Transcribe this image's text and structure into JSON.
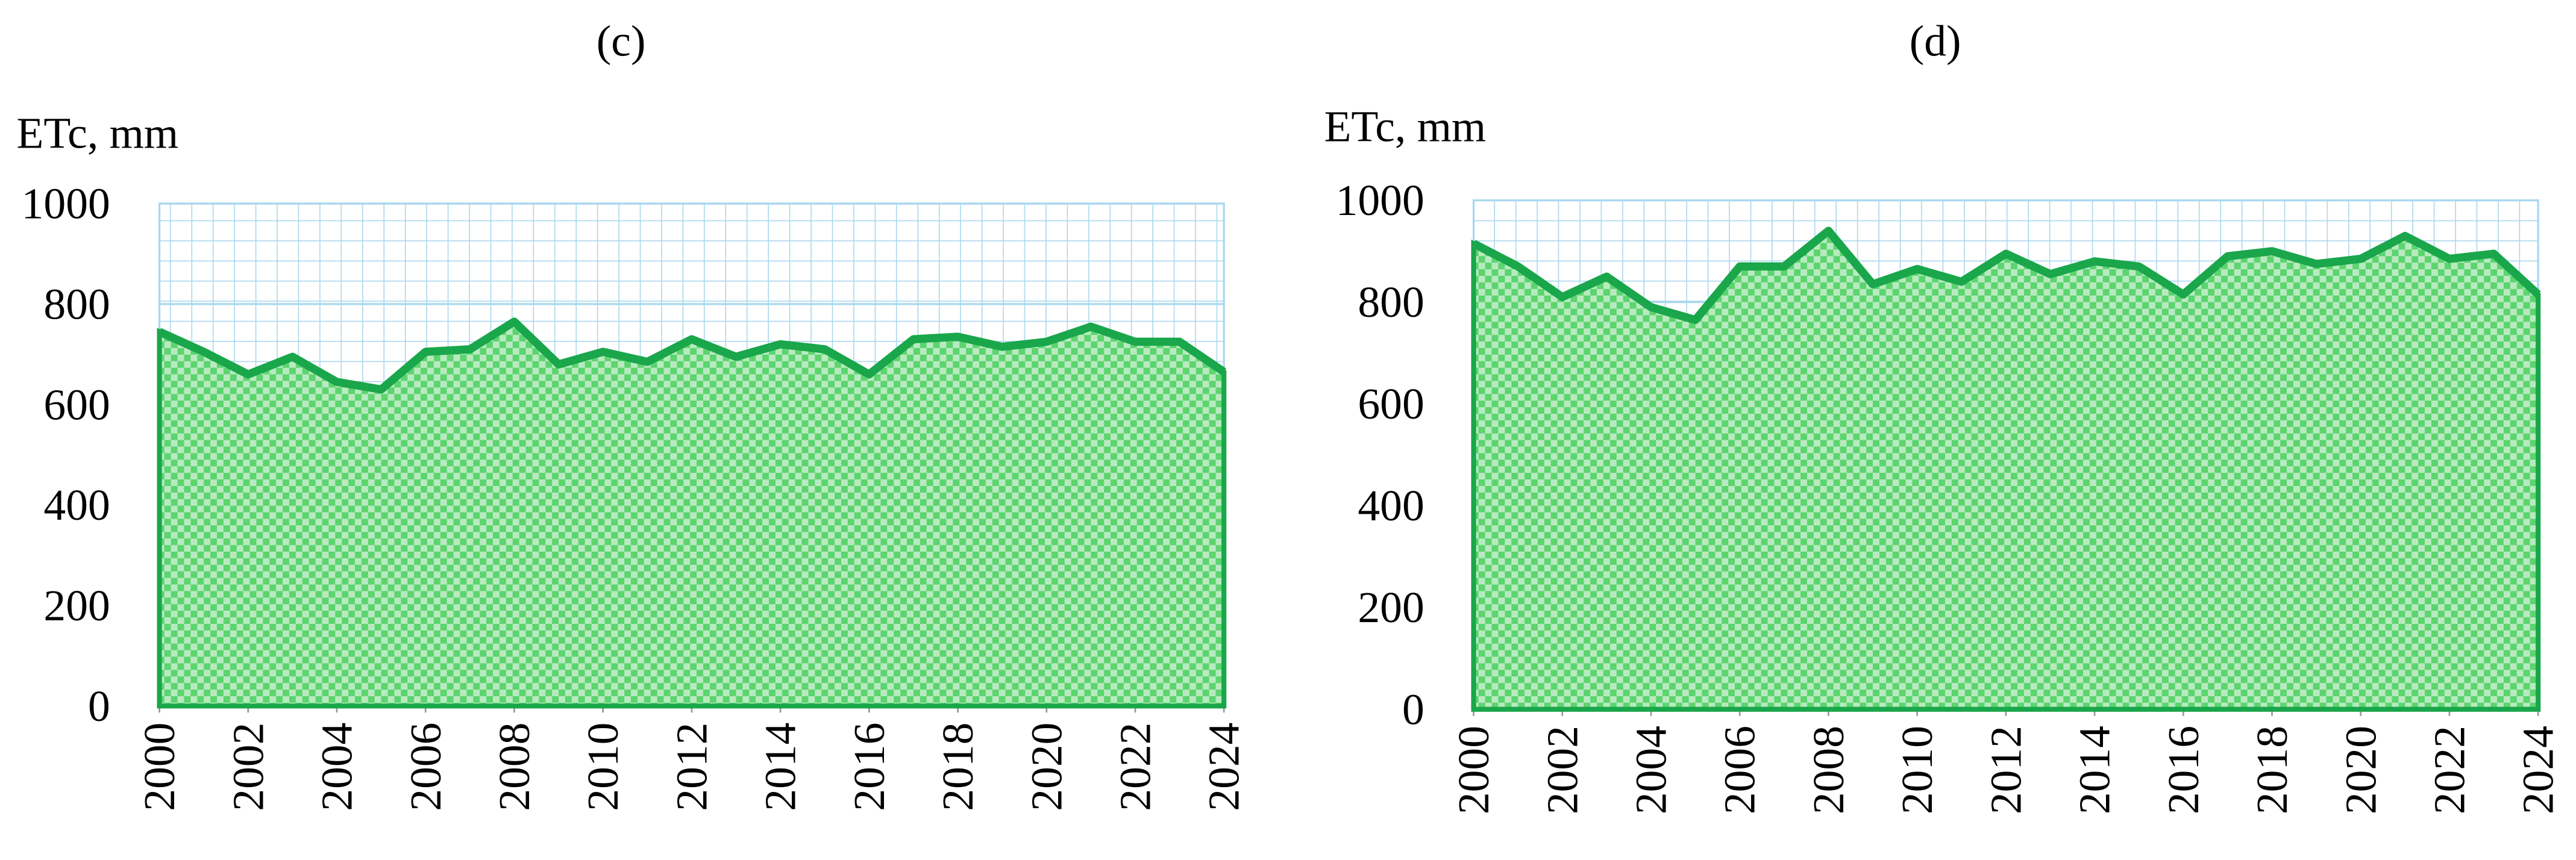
{
  "chart_data": [
    {
      "type": "area",
      "title": "(c)",
      "y_label": "ETc, mm",
      "x": [
        2000,
        2001,
        2002,
        2003,
        2004,
        2005,
        2006,
        2007,
        2008,
        2009,
        2010,
        2011,
        2012,
        2013,
        2014,
        2015,
        2016,
        2017,
        2018,
        2019,
        2020,
        2021,
        2022,
        2023,
        2024
      ],
      "values": [
        745,
        705,
        660,
        695,
        645,
        630,
        705,
        710,
        765,
        680,
        705,
        685,
        730,
        695,
        720,
        710,
        660,
        730,
        735,
        715,
        725,
        755,
        725,
        725,
        665
      ],
      "color": "#1aa64a",
      "xlim": [
        2000,
        2024
      ],
      "xticks": [
        2000,
        2002,
        2004,
        2006,
        2008,
        2010,
        2012,
        2014,
        2016,
        2018,
        2020,
        2022,
        2024
      ],
      "ylim": [
        0,
        1000
      ],
      "yticks": [
        0,
        200,
        400,
        600,
        800,
        1000
      ],
      "grid": true
    },
    {
      "type": "area",
      "title": "(d)",
      "y_label": "ETc, mm",
      "x": [
        2000,
        2001,
        2002,
        2003,
        2004,
        2005,
        2006,
        2007,
        2008,
        2009,
        2010,
        2011,
        2012,
        2013,
        2014,
        2015,
        2016,
        2017,
        2018,
        2019,
        2020,
        2021,
        2022,
        2023,
        2024
      ],
      "values": [
        915,
        870,
        810,
        850,
        790,
        765,
        870,
        870,
        940,
        835,
        865,
        840,
        895,
        855,
        880,
        870,
        815,
        890,
        900,
        875,
        885,
        930,
        885,
        895,
        815
      ],
      "color": "#1aa64a",
      "xlim": [
        2000,
        2024
      ],
      "xticks": [
        2000,
        2002,
        2004,
        2006,
        2008,
        2010,
        2012,
        2014,
        2016,
        2018,
        2020,
        2022,
        2024
      ],
      "ylim": [
        0,
        1000
      ],
      "yticks": [
        0,
        200,
        400,
        600,
        800,
        1000
      ],
      "grid": true
    }
  ]
}
